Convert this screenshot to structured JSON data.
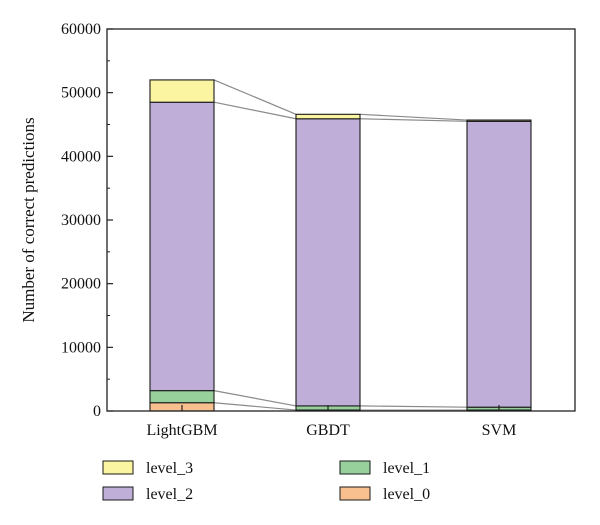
{
  "chart_data": {
    "type": "bar",
    "stacked": true,
    "categories": [
      "LightGBM",
      "GBDT",
      "SVM"
    ],
    "ylabel": "Number of correct predictions",
    "xlabel": "",
    "ylim": [
      0,
      60000
    ],
    "yticks": [
      0,
      10000,
      20000,
      30000,
      40000,
      50000,
      60000
    ],
    "connector_lines": true,
    "legend_placement": "bottom",
    "series": [
      {
        "name": "level_0",
        "values": [
          1300,
          150,
          150
        ],
        "color": "#f9c08f"
      },
      {
        "name": "level_1",
        "values": [
          1900,
          650,
          450
        ],
        "color": "#98d09c"
      },
      {
        "name": "level_2",
        "values": [
          45300,
          45100,
          44900
        ],
        "color": "#bfafd8"
      },
      {
        "name": "level_3",
        "values": [
          3500,
          700,
          200
        ],
        "color": "#fbf4a0"
      }
    ],
    "legend_order": [
      "level_3",
      "level_1",
      "level_2",
      "level_0"
    ]
  }
}
